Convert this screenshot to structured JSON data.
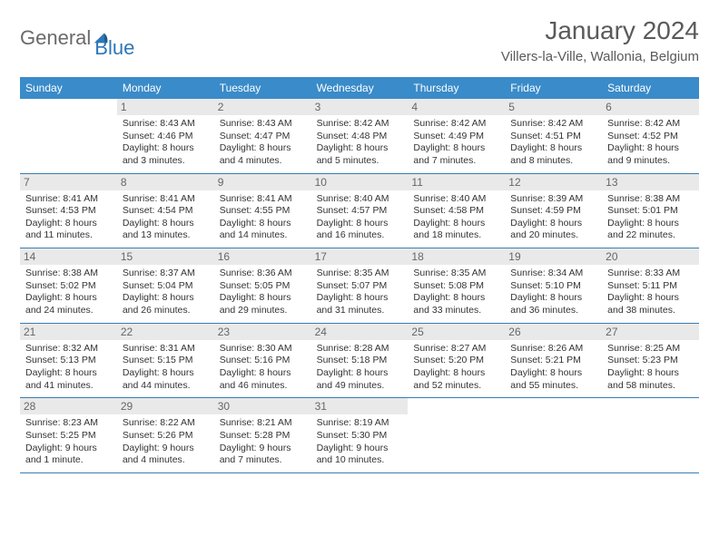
{
  "logo": {
    "general": "General",
    "blue": "Blue"
  },
  "title": "January 2024",
  "location": "Villers-la-Ville, Wallonia, Belgium",
  "colors": {
    "header_bg": "#3a8bc9",
    "header_text": "#ffffff",
    "daynum_bg": "#e9e9e9",
    "daynum_text": "#666666",
    "divider": "#3a7db0",
    "body_text": "#333333",
    "title_text": "#5a5a5a",
    "logo_gray": "#6a6a6a",
    "logo_blue": "#2e77b8"
  },
  "fonts": {
    "title_size": 28,
    "location_size": 15,
    "dow_size": 12,
    "daynum_size": 12,
    "body_size": 10.5
  },
  "days_of_week": [
    "Sunday",
    "Monday",
    "Tuesday",
    "Wednesday",
    "Thursday",
    "Friday",
    "Saturday"
  ],
  "weeks": [
    [
      {
        "n": "",
        "sr": "",
        "ss": "",
        "dl": ""
      },
      {
        "n": "1",
        "sr": "Sunrise: 8:43 AM",
        "ss": "Sunset: 4:46 PM",
        "dl": "Daylight: 8 hours and 3 minutes."
      },
      {
        "n": "2",
        "sr": "Sunrise: 8:43 AM",
        "ss": "Sunset: 4:47 PM",
        "dl": "Daylight: 8 hours and 4 minutes."
      },
      {
        "n": "3",
        "sr": "Sunrise: 8:42 AM",
        "ss": "Sunset: 4:48 PM",
        "dl": "Daylight: 8 hours and 5 minutes."
      },
      {
        "n": "4",
        "sr": "Sunrise: 8:42 AM",
        "ss": "Sunset: 4:49 PM",
        "dl": "Daylight: 8 hours and 7 minutes."
      },
      {
        "n": "5",
        "sr": "Sunrise: 8:42 AM",
        "ss": "Sunset: 4:51 PM",
        "dl": "Daylight: 8 hours and 8 minutes."
      },
      {
        "n": "6",
        "sr": "Sunrise: 8:42 AM",
        "ss": "Sunset: 4:52 PM",
        "dl": "Daylight: 8 hours and 9 minutes."
      }
    ],
    [
      {
        "n": "7",
        "sr": "Sunrise: 8:41 AM",
        "ss": "Sunset: 4:53 PM",
        "dl": "Daylight: 8 hours and 11 minutes."
      },
      {
        "n": "8",
        "sr": "Sunrise: 8:41 AM",
        "ss": "Sunset: 4:54 PM",
        "dl": "Daylight: 8 hours and 13 minutes."
      },
      {
        "n": "9",
        "sr": "Sunrise: 8:41 AM",
        "ss": "Sunset: 4:55 PM",
        "dl": "Daylight: 8 hours and 14 minutes."
      },
      {
        "n": "10",
        "sr": "Sunrise: 8:40 AM",
        "ss": "Sunset: 4:57 PM",
        "dl": "Daylight: 8 hours and 16 minutes."
      },
      {
        "n": "11",
        "sr": "Sunrise: 8:40 AM",
        "ss": "Sunset: 4:58 PM",
        "dl": "Daylight: 8 hours and 18 minutes."
      },
      {
        "n": "12",
        "sr": "Sunrise: 8:39 AM",
        "ss": "Sunset: 4:59 PM",
        "dl": "Daylight: 8 hours and 20 minutes."
      },
      {
        "n": "13",
        "sr": "Sunrise: 8:38 AM",
        "ss": "Sunset: 5:01 PM",
        "dl": "Daylight: 8 hours and 22 minutes."
      }
    ],
    [
      {
        "n": "14",
        "sr": "Sunrise: 8:38 AM",
        "ss": "Sunset: 5:02 PM",
        "dl": "Daylight: 8 hours and 24 minutes."
      },
      {
        "n": "15",
        "sr": "Sunrise: 8:37 AM",
        "ss": "Sunset: 5:04 PM",
        "dl": "Daylight: 8 hours and 26 minutes."
      },
      {
        "n": "16",
        "sr": "Sunrise: 8:36 AM",
        "ss": "Sunset: 5:05 PM",
        "dl": "Daylight: 8 hours and 29 minutes."
      },
      {
        "n": "17",
        "sr": "Sunrise: 8:35 AM",
        "ss": "Sunset: 5:07 PM",
        "dl": "Daylight: 8 hours and 31 minutes."
      },
      {
        "n": "18",
        "sr": "Sunrise: 8:35 AM",
        "ss": "Sunset: 5:08 PM",
        "dl": "Daylight: 8 hours and 33 minutes."
      },
      {
        "n": "19",
        "sr": "Sunrise: 8:34 AM",
        "ss": "Sunset: 5:10 PM",
        "dl": "Daylight: 8 hours and 36 minutes."
      },
      {
        "n": "20",
        "sr": "Sunrise: 8:33 AM",
        "ss": "Sunset: 5:11 PM",
        "dl": "Daylight: 8 hours and 38 minutes."
      }
    ],
    [
      {
        "n": "21",
        "sr": "Sunrise: 8:32 AM",
        "ss": "Sunset: 5:13 PM",
        "dl": "Daylight: 8 hours and 41 minutes."
      },
      {
        "n": "22",
        "sr": "Sunrise: 8:31 AM",
        "ss": "Sunset: 5:15 PM",
        "dl": "Daylight: 8 hours and 44 minutes."
      },
      {
        "n": "23",
        "sr": "Sunrise: 8:30 AM",
        "ss": "Sunset: 5:16 PM",
        "dl": "Daylight: 8 hours and 46 minutes."
      },
      {
        "n": "24",
        "sr": "Sunrise: 8:28 AM",
        "ss": "Sunset: 5:18 PM",
        "dl": "Daylight: 8 hours and 49 minutes."
      },
      {
        "n": "25",
        "sr": "Sunrise: 8:27 AM",
        "ss": "Sunset: 5:20 PM",
        "dl": "Daylight: 8 hours and 52 minutes."
      },
      {
        "n": "26",
        "sr": "Sunrise: 8:26 AM",
        "ss": "Sunset: 5:21 PM",
        "dl": "Daylight: 8 hours and 55 minutes."
      },
      {
        "n": "27",
        "sr": "Sunrise: 8:25 AM",
        "ss": "Sunset: 5:23 PM",
        "dl": "Daylight: 8 hours and 58 minutes."
      }
    ],
    [
      {
        "n": "28",
        "sr": "Sunrise: 8:23 AM",
        "ss": "Sunset: 5:25 PM",
        "dl": "Daylight: 9 hours and 1 minute."
      },
      {
        "n": "29",
        "sr": "Sunrise: 8:22 AM",
        "ss": "Sunset: 5:26 PM",
        "dl": "Daylight: 9 hours and 4 minutes."
      },
      {
        "n": "30",
        "sr": "Sunrise: 8:21 AM",
        "ss": "Sunset: 5:28 PM",
        "dl": "Daylight: 9 hours and 7 minutes."
      },
      {
        "n": "31",
        "sr": "Sunrise: 8:19 AM",
        "ss": "Sunset: 5:30 PM",
        "dl": "Daylight: 9 hours and 10 minutes."
      },
      {
        "n": "",
        "sr": "",
        "ss": "",
        "dl": ""
      },
      {
        "n": "",
        "sr": "",
        "ss": "",
        "dl": ""
      },
      {
        "n": "",
        "sr": "",
        "ss": "",
        "dl": ""
      }
    ]
  ]
}
